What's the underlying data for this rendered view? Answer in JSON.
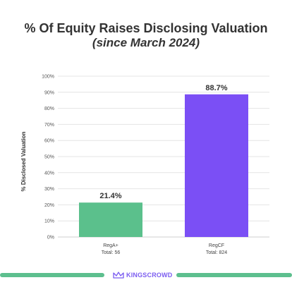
{
  "title": "% Of Equity Raises Disclosing Valuation",
  "subtitle": "(since March 2024)",
  "brand": {
    "name": "KINGSCROWD",
    "icon": "crown-logo-icon",
    "color": "#7b5cf0"
  },
  "colors": {
    "bar_rega": "#5bc08c",
    "bar_regcf": "#7b4ff5",
    "footer": "#5dbf8e"
  },
  "chart_data": {
    "type": "bar",
    "title": "% Of Equity Raises Disclosing Valuation",
    "subtitle": "(since March 2024)",
    "ylabel": "% Disclosed Valuation",
    "xlabel": "",
    "ylim": [
      0,
      100
    ],
    "yticks": [
      "0%",
      "10%",
      "20%",
      "30%",
      "40%",
      "50%",
      "60%",
      "70%",
      "80%",
      "90%",
      "100%"
    ],
    "grid": true,
    "categories": [
      "RegA+",
      "RegCF"
    ],
    "category_sublabels": [
      "Total: 56",
      "Total: 824"
    ],
    "values": [
      21.4,
      88.7
    ],
    "data_labels": [
      "21.4%",
      "88.7%"
    ]
  }
}
